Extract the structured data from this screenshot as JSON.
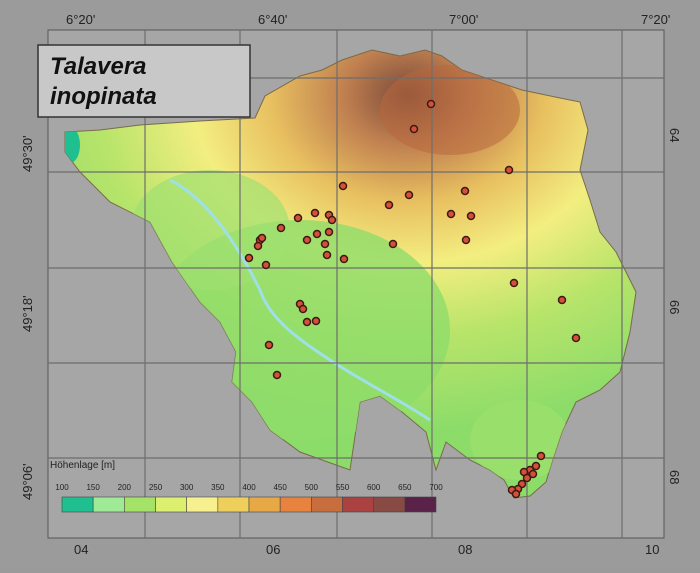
{
  "title": {
    "line1": "Talavera",
    "line2": "inopinata"
  },
  "axes": {
    "top": [
      "6°20'",
      "6°40'",
      "7°00'",
      "7°20'"
    ],
    "left": [
      "49°30'",
      "49°18'",
      "49°06'"
    ],
    "bottom": [
      "04",
      "06",
      "08",
      "10"
    ],
    "right": [
      "64",
      "66",
      "68"
    ]
  },
  "legend": {
    "title": "Höhenlage [m]",
    "ticks": [
      100,
      150,
      200,
      250,
      300,
      350,
      400,
      450,
      500,
      550,
      600,
      650,
      700
    ],
    "colors": [
      "#1fbf8f",
      "#9eea96",
      "#a4e268",
      "#dcef6e",
      "#f7f08e",
      "#eecf5c",
      "#e6a946",
      "#e7833e",
      "#c86e3e",
      "#aa4242",
      "#8a4a44",
      "#5a2248"
    ]
  }
}
